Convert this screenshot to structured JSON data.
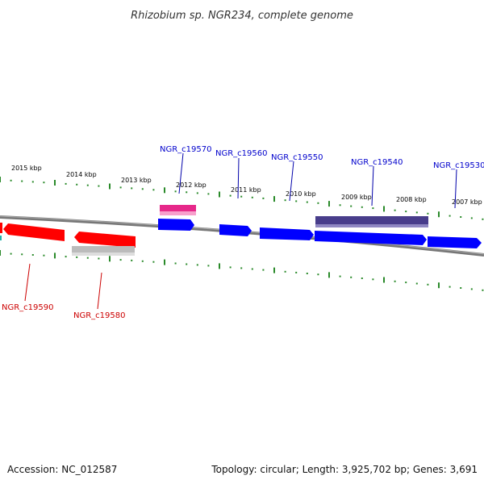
{
  "header": {
    "title": "Rhizobium sp. NGR234, complete genome"
  },
  "footer": {
    "accession": "Accession: NC_012587",
    "summary": "Topology: circular; Length: 3,925,702 bp; Genes: 3,691"
  },
  "colors": {
    "forward_gene": "#0000ff",
    "reverse_gene": "#ff0000",
    "rna_feature": "#e6288a",
    "pseudo_feature": "#483d8b",
    "grey_feature": "#bbbbbb",
    "backbone": "#777777",
    "ticks": "#2a8a2a"
  },
  "ruler": {
    "labels": [
      "2015 kbp",
      "2014 kbp",
      "2013 kbp",
      "2012 kbp",
      "2011 kbp",
      "2010 kbp",
      "2009 kbp",
      "2008 kbp",
      "2007 kbp"
    ]
  },
  "genes": {
    "forward": [
      "NGR_c19570",
      "NGR_c19560",
      "NGR_c19550",
      "NGR_c19540",
      "NGR_c19530"
    ],
    "reverse": [
      "NGR_c19590",
      "NGR_c19580"
    ]
  }
}
